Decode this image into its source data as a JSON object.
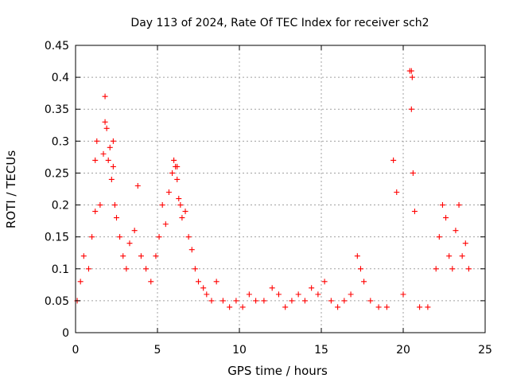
{
  "chart_data": {
    "type": "scatter",
    "title": "Day 113 of 2024, Rate Of TEC Index for receiver sch2",
    "xlabel": "GPS time / hours",
    "ylabel": "ROTI / TECUs",
    "xlim": [
      0,
      25
    ],
    "ylim": [
      0,
      0.45
    ],
    "x_ticks": [
      "0",
      "5",
      "10",
      "15",
      "20",
      "25"
    ],
    "y_ticks": [
      "0",
      "0.05",
      "0.1",
      "0.15",
      "0.2",
      "0.25",
      "0.3",
      "0.35",
      "0.4",
      "0.45"
    ],
    "grid": true,
    "marker": "plus",
    "color": "#ff0000",
    "series": [
      {
        "name": "ROTI",
        "x": [
          0.1,
          0.3,
          0.5,
          0.8,
          1.0,
          1.2,
          1.3,
          1.5,
          1.7,
          1.8,
          1.9,
          2.0,
          2.1,
          2.2,
          2.3,
          2.4,
          2.5,
          2.7,
          2.9,
          3.1,
          3.3,
          3.6,
          3.8,
          4.0,
          4.3,
          4.6,
          4.9,
          5.1,
          5.3,
          5.5,
          5.7,
          5.9,
          6.0,
          6.1,
          6.2,
          6.3,
          6.4,
          6.5,
          6.7,
          6.9,
          7.1,
          7.3,
          7.5,
          7.8,
          8.0,
          8.3,
          8.6,
          9.0,
          9.4,
          9.8,
          10.2,
          10.6,
          11.0,
          11.5,
          12.0,
          12.4,
          12.8,
          13.2,
          13.6,
          14.0,
          14.4,
          14.8,
          15.2,
          15.6,
          16.0,
          16.4,
          16.8,
          17.2,
          17.4,
          17.6,
          18.0,
          18.5,
          19.0,
          19.4,
          19.6,
          20.0,
          20.4,
          20.5,
          20.6,
          20.7,
          21.0,
          21.5,
          22.0,
          22.2,
          22.4,
          22.6,
          22.8,
          23.0,
          23.2,
          23.4,
          23.6,
          23.8,
          24.0,
          1.8,
          20.5,
          20.55,
          1.2,
          2.3,
          6.2
        ],
        "y": [
          0.05,
          0.08,
          0.12,
          0.1,
          0.15,
          0.19,
          0.3,
          0.2,
          0.28,
          0.37,
          0.32,
          0.27,
          0.29,
          0.24,
          0.26,
          0.2,
          0.18,
          0.15,
          0.12,
          0.1,
          0.14,
          0.16,
          0.23,
          0.12,
          0.1,
          0.08,
          0.12,
          0.15,
          0.2,
          0.17,
          0.22,
          0.25,
          0.27,
          0.26,
          0.24,
          0.21,
          0.2,
          0.18,
          0.19,
          0.15,
          0.13,
          0.1,
          0.08,
          0.07,
          0.06,
          0.05,
          0.08,
          0.05,
          0.04,
          0.05,
          0.04,
          0.06,
          0.05,
          0.05,
          0.07,
          0.06,
          0.04,
          0.05,
          0.06,
          0.05,
          0.07,
          0.06,
          0.08,
          0.05,
          0.04,
          0.05,
          0.06,
          0.12,
          0.1,
          0.08,
          0.05,
          0.04,
          0.04,
          0.27,
          0.22,
          0.06,
          0.41,
          0.35,
          0.25,
          0.19,
          0.04,
          0.04,
          0.1,
          0.15,
          0.2,
          0.18,
          0.12,
          0.1,
          0.16,
          0.2,
          0.12,
          0.14,
          0.1,
          0.33,
          0.41,
          0.4,
          0.27,
          0.3,
          0.26
        ]
      }
    ]
  }
}
